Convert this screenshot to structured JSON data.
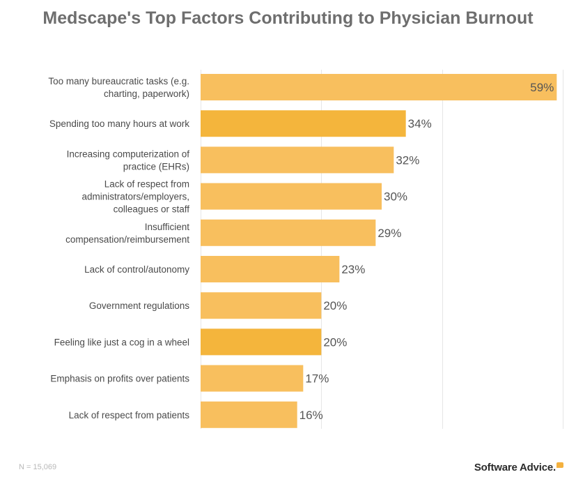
{
  "chart_data": {
    "type": "bar",
    "orientation": "horizontal",
    "title": "Medscape's Top Factors Contributing to Physician Burnout",
    "categories": [
      "Too many bureaucratic tasks (e.g. charting, paperwork)",
      "Spending too many hours at work",
      "Increasing computerization of practice (EHRs)",
      "Lack of respect from administrators/employers, colleagues or staff",
      "Insufficient compensation/reimbursement",
      "Lack of control/autonomy",
      "Government regulations",
      "Feeling like just a cog in a wheel",
      "Emphasis on profits over patients",
      "Lack of respect from patients"
    ],
    "category_lines": [
      [
        "Too many bureaucratic tasks (e.g.",
        "charting, paperwork)"
      ],
      [
        "Spending too many hours at work"
      ],
      [
        "Increasing computerization of",
        "practice (EHRs)"
      ],
      [
        "Lack of respect from",
        "administrators/employers,",
        "colleagues or staff"
      ],
      [
        "Insufficient",
        "compensation/reimbursement"
      ],
      [
        "Lack of control/autonomy"
      ],
      [
        "Government regulations"
      ],
      [
        "Feeling like just a cog in a wheel"
      ],
      [
        "Emphasis on profits over patients"
      ],
      [
        "Lack of respect from patients"
      ]
    ],
    "values": [
      59,
      34,
      32,
      30,
      29,
      23,
      20,
      20,
      17,
      16
    ],
    "value_labels": [
      "59%",
      "34%",
      "32%",
      "30%",
      "29%",
      "23%",
      "20%",
      "20%",
      "17%",
      "16%"
    ],
    "unit": "%",
    "xlim": [
      0,
      60
    ],
    "gridlines": [
      0,
      20,
      40,
      60
    ],
    "grid": true,
    "legend": "none",
    "bar_color": "#f8bf5e",
    "highlight_color": "#f4b53c",
    "highlighted_indices": [
      1,
      7
    ]
  },
  "footnote": "N = 15,069",
  "brand": {
    "name": "Software Advice.",
    "accent_color": "#f4b13f"
  }
}
